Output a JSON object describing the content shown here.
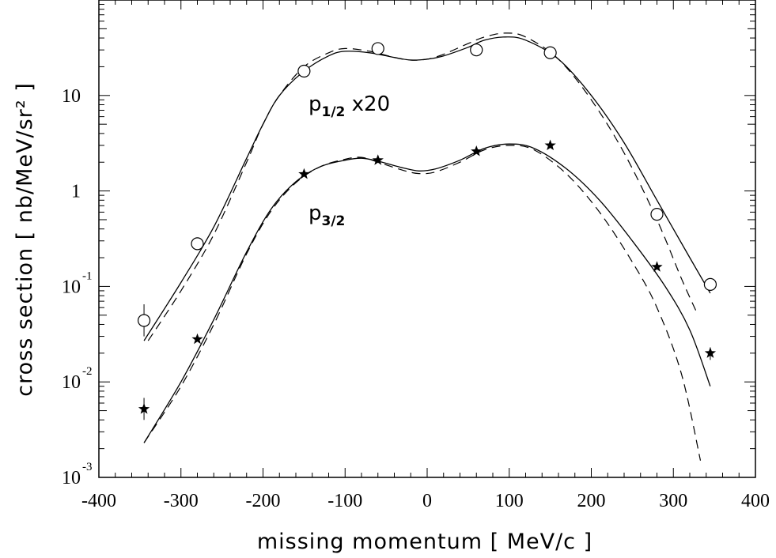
{
  "chart_data": {
    "type": "scatter",
    "title": "",
    "xlabel": "missing momentum [ MeV/c ]",
    "ylabel": "cross section [ nb/MeV/sr² ]",
    "xlim": [
      -400,
      400
    ],
    "ylim": [
      0.001,
      100
    ],
    "yscale": "log",
    "grid": false,
    "x_ticks": [
      "-400",
      "-300",
      "-200",
      "-100",
      "0",
      "100",
      "200",
      "300",
      "400"
    ],
    "y_ticks": [
      {
        "base": "10",
        "exp": "-3"
      },
      {
        "base": "10",
        "exp": "-2"
      },
      {
        "base": "10",
        "exp": "-1"
      },
      {
        "base": "1",
        "exp": ""
      },
      {
        "base": "10",
        "exp": ""
      }
    ],
    "series": [
      {
        "name": "p1/2 x20",
        "marker": "circle",
        "label_main": "p",
        "label_sub": "1/2",
        "label_suffix": " x20",
        "points": [
          {
            "x": -345,
            "y": 0.044,
            "err": [
              0.03,
              0.065
            ]
          },
          {
            "x": -280,
            "y": 0.28
          },
          {
            "x": -150,
            "y": 18
          },
          {
            "x": -60,
            "y": 31
          },
          {
            "x": 60,
            "y": 30
          },
          {
            "x": 150,
            "y": 28
          },
          {
            "x": 280,
            "y": 0.57
          },
          {
            "x": 345,
            "y": 0.105
          }
        ],
        "fit_solid": [
          {
            "x": -345,
            "y": 0.027
          },
          {
            "x": -300,
            "y": 0.11
          },
          {
            "x": -260,
            "y": 0.42
          },
          {
            "x": -220,
            "y": 2.2
          },
          {
            "x": -200,
            "y": 5
          },
          {
            "x": -180,
            "y": 10
          },
          {
            "x": -150,
            "y": 18
          },
          {
            "x": -120,
            "y": 26
          },
          {
            "x": -100,
            "y": 29
          },
          {
            "x": -70,
            "y": 28
          },
          {
            "x": -40,
            "y": 25
          },
          {
            "x": -20,
            "y": 23.5
          },
          {
            "x": 0,
            "y": 24
          },
          {
            "x": 20,
            "y": 26
          },
          {
            "x": 50,
            "y": 32
          },
          {
            "x": 70,
            "y": 38
          },
          {
            "x": 95,
            "y": 41
          },
          {
            "x": 120,
            "y": 38
          },
          {
            "x": 160,
            "y": 24
          },
          {
            "x": 200,
            "y": 10
          },
          {
            "x": 240,
            "y": 3.2
          },
          {
            "x": 280,
            "y": 0.8
          },
          {
            "x": 320,
            "y": 0.2
          },
          {
            "x": 345,
            "y": 0.085
          }
        ],
        "fit_dashed": [
          {
            "x": -340,
            "y": 0.027
          },
          {
            "x": -300,
            "y": 0.09
          },
          {
            "x": -260,
            "y": 0.35
          },
          {
            "x": -220,
            "y": 2.0
          },
          {
            "x": -200,
            "y": 5
          },
          {
            "x": -180,
            "y": 10
          },
          {
            "x": -150,
            "y": 20
          },
          {
            "x": -120,
            "y": 28
          },
          {
            "x": -100,
            "y": 31
          },
          {
            "x": -70,
            "y": 29
          },
          {
            "x": -40,
            "y": 25
          },
          {
            "x": -20,
            "y": 23.5
          },
          {
            "x": 0,
            "y": 24
          },
          {
            "x": 20,
            "y": 27
          },
          {
            "x": 50,
            "y": 35
          },
          {
            "x": 70,
            "y": 41
          },
          {
            "x": 95,
            "y": 45
          },
          {
            "x": 120,
            "y": 41
          },
          {
            "x": 160,
            "y": 24
          },
          {
            "x": 200,
            "y": 9
          },
          {
            "x": 240,
            "y": 2.5
          },
          {
            "x": 280,
            "y": 0.5
          },
          {
            "x": 310,
            "y": 0.12
          },
          {
            "x": 330,
            "y": 0.05
          }
        ]
      },
      {
        "name": "p3/2",
        "marker": "star",
        "label_main": "p",
        "label_sub": "3/2",
        "label_suffix": "",
        "points": [
          {
            "x": -345,
            "y": 0.0052,
            "err": [
              0.004,
              0.0068
            ]
          },
          {
            "x": -280,
            "y": 0.028
          },
          {
            "x": -150,
            "y": 1.5
          },
          {
            "x": -60,
            "y": 2.1
          },
          {
            "x": 60,
            "y": 2.6
          },
          {
            "x": 150,
            "y": 3.0
          },
          {
            "x": 280,
            "y": 0.16
          },
          {
            "x": 345,
            "y": 0.02,
            "err": [
              0.017,
              0.023
            ]
          }
        ],
        "fit_solid": [
          {
            "x": -345,
            "y": 0.0023
          },
          {
            "x": -300,
            "y": 0.01
          },
          {
            "x": -260,
            "y": 0.045
          },
          {
            "x": -220,
            "y": 0.23
          },
          {
            "x": -190,
            "y": 0.65
          },
          {
            "x": -160,
            "y": 1.25
          },
          {
            "x": -130,
            "y": 1.8
          },
          {
            "x": -100,
            "y": 2.1
          },
          {
            "x": -80,
            "y": 2.2
          },
          {
            "x": -60,
            "y": 2.05
          },
          {
            "x": -30,
            "y": 1.75
          },
          {
            "x": -10,
            "y": 1.62
          },
          {
            "x": 10,
            "y": 1.7
          },
          {
            "x": 40,
            "y": 2.1
          },
          {
            "x": 70,
            "y": 2.8
          },
          {
            "x": 100,
            "y": 3.1
          },
          {
            "x": 130,
            "y": 2.8
          },
          {
            "x": 170,
            "y": 1.7
          },
          {
            "x": 210,
            "y": 0.8
          },
          {
            "x": 250,
            "y": 0.3
          },
          {
            "x": 290,
            "y": 0.1
          },
          {
            "x": 320,
            "y": 0.035
          },
          {
            "x": 345,
            "y": 0.009
          }
        ],
        "fit_dashed": [
          {
            "x": -345,
            "y": 0.0023
          },
          {
            "x": -300,
            "y": 0.009
          },
          {
            "x": -260,
            "y": 0.04
          },
          {
            "x": -220,
            "y": 0.22
          },
          {
            "x": -190,
            "y": 0.62
          },
          {
            "x": -160,
            "y": 1.22
          },
          {
            "x": -130,
            "y": 1.8
          },
          {
            "x": -100,
            "y": 2.15
          },
          {
            "x": -80,
            "y": 2.25
          },
          {
            "x": -60,
            "y": 2.0
          },
          {
            "x": -30,
            "y": 1.65
          },
          {
            "x": -10,
            "y": 1.52
          },
          {
            "x": 10,
            "y": 1.58
          },
          {
            "x": 40,
            "y": 2.0
          },
          {
            "x": 70,
            "y": 2.7
          },
          {
            "x": 100,
            "y": 3.0
          },
          {
            "x": 130,
            "y": 2.7
          },
          {
            "x": 170,
            "y": 1.5
          },
          {
            "x": 210,
            "y": 0.6
          },
          {
            "x": 250,
            "y": 0.18
          },
          {
            "x": 280,
            "y": 0.06
          },
          {
            "x": 310,
            "y": 0.012
          },
          {
            "x": 333,
            "y": 0.0015
          }
        ]
      }
    ]
  }
}
